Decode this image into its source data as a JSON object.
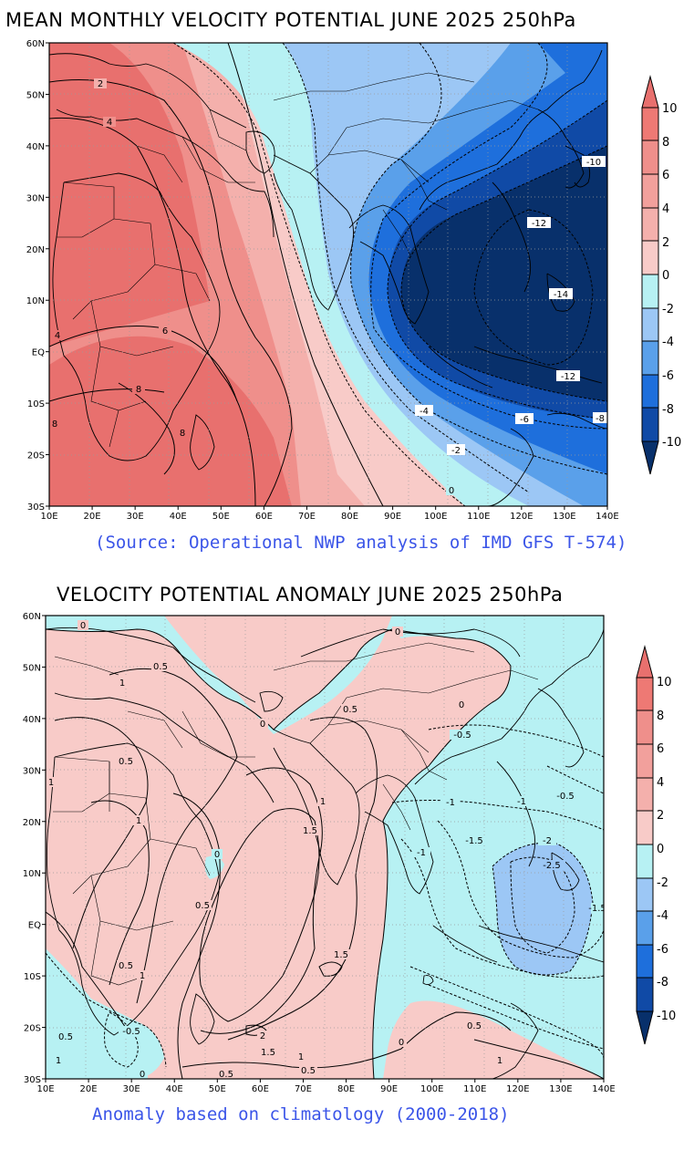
{
  "panel1": {
    "title": "MEAN MONTHLY VELOCITY POTENTIAL JUNE 2025 250hPa",
    "source": "(Source: Operational NWP analysis of IMD GFS T-574)",
    "contour_labels": [
      "2",
      "4",
      "6",
      "8",
      "8",
      "4",
      "8",
      "-10",
      "-12",
      "-14",
      "-12",
      "-4",
      "-6",
      "-8",
      "-2",
      "0"
    ],
    "colorbar_labels": [
      "10",
      "8",
      "6",
      "4",
      "2",
      "0",
      "-2",
      "-4",
      "-6",
      "-8",
      "-10"
    ]
  },
  "panel2": {
    "title": "VELOCITY POTENTIAL ANOMALY JUNE 2025 250hPa",
    "source": "Anomaly based on climatology (2000-2018)",
    "contour_labels": [
      "0",
      "0.5",
      "1",
      "0",
      "0.5",
      "0",
      "0",
      "0.5",
      "1",
      "0.5",
      "1",
      "1.5",
      "1",
      "0",
      "0.5",
      "1.5",
      "1",
      "-0.5",
      "-1",
      "-1",
      "-0.5",
      "-1",
      "-1.5",
      "-2",
      "-2.5",
      "-1.5",
      "0.5",
      "-0.5",
      "0.5",
      "1",
      "2",
      "1.5",
      "1",
      "0.5",
      "0.5",
      "0",
      "0.5",
      "1",
      "1",
      "0"
    ],
    "colorbar_labels": [
      "10",
      "8",
      "6",
      "4",
      "2",
      "0",
      "-2",
      "-4",
      "-6",
      "-8",
      "-10"
    ]
  },
  "axes": {
    "x_ticks": [
      "10E",
      "20E",
      "30E",
      "40E",
      "50E",
      "60E",
      "70E",
      "80E",
      "90E",
      "100E",
      "110E",
      "120E",
      "130E",
      "140E"
    ],
    "y_ticks": [
      "60N",
      "50N",
      "40N",
      "30N",
      "20N",
      "10N",
      "EQ",
      "10S",
      "20S",
      "30S"
    ]
  },
  "colors": {
    "pos4": "#e8706e",
    "pos3": "#ef8f8b",
    "pos2": "#f4b0ac",
    "pos1": "#f8cbc8",
    "neg1": "#b7f1f3",
    "neg2": "#9cc7f5",
    "neg3": "#5aa0ea",
    "neg4": "#1e6fdc",
    "neg5": "#104aa6",
    "neg6": "#08306b",
    "source_text": "#3b55e8"
  }
}
